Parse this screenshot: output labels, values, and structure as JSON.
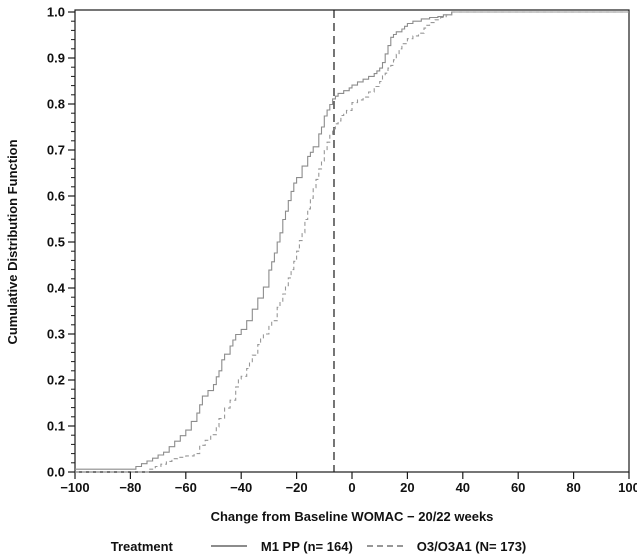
{
  "chart_data": {
    "type": "line",
    "subtype": "empirical-cdf-step",
    "title": "",
    "xlabel": "Change from Baseline WOMAC − 20/22 weeks",
    "ylabel": "Cumulative Distribution Function",
    "xlim": [
      -100,
      100
    ],
    "ylim": [
      0,
      1
    ],
    "grid": "off",
    "legend_position": "bottom",
    "legend_title": "Treatment",
    "x_ticks": [
      -100,
      -80,
      -60,
      -40,
      -20,
      0,
      20,
      40,
      60,
      80,
      100
    ],
    "x_tick_labels": [
      "−100",
      "−80",
      "−60",
      "−40",
      "−20",
      "0",
      "20",
      "40",
      "60",
      "80",
      "100"
    ],
    "y_ticks": [
      0,
      0.1,
      0.2,
      0.3,
      0.4,
      0.5,
      0.6,
      0.7,
      0.8,
      0.9,
      1.0
    ],
    "y_tick_labels": [
      "0.0",
      "0.1",
      "0.2",
      "0.3",
      "0.4",
      "0.5",
      "0.6",
      "0.7",
      "0.8",
      "0.9",
      "1.0"
    ],
    "y_minor_tick_step": 0.02,
    "reference_line_x": -6.5,
    "colors": {
      "axis": "#1a1a1a",
      "reference_line": "#1a1a1a",
      "background": "#ffffff"
    },
    "series": [
      {
        "name": "M1 PP (n= 164)",
        "line_style": "solid",
        "color": "#8c8c8c",
        "points": [
          [
            -100,
            0.006
          ],
          [
            -79,
            0.006
          ],
          [
            -78,
            0.012
          ],
          [
            -76,
            0.018
          ],
          [
            -74,
            0.024
          ],
          [
            -72,
            0.03
          ],
          [
            -70,
            0.037
          ],
          [
            -68,
            0.043
          ],
          [
            -66,
            0.055
          ],
          [
            -64,
            0.067
          ],
          [
            -62,
            0.079
          ],
          [
            -60,
            0.091
          ],
          [
            -58,
            0.11
          ],
          [
            -56,
            0.128
          ],
          [
            -55,
            0.146
          ],
          [
            -54,
            0.165
          ],
          [
            -52,
            0.177
          ],
          [
            -50,
            0.19
          ],
          [
            -49,
            0.207
          ],
          [
            -48,
            0.22
          ],
          [
            -47,
            0.244
          ],
          [
            -46,
            0.256
          ],
          [
            -44,
            0.274
          ],
          [
            -43,
            0.287
          ],
          [
            -42,
            0.299
          ],
          [
            -40,
            0.31
          ],
          [
            -38,
            0.329
          ],
          [
            -36,
            0.354
          ],
          [
            -34,
            0.378
          ],
          [
            -32,
            0.402
          ],
          [
            -30,
            0.439
          ],
          [
            -29,
            0.457
          ],
          [
            -28,
            0.476
          ],
          [
            -27,
            0.5
          ],
          [
            -26,
            0.52
          ],
          [
            -25,
            0.549
          ],
          [
            -24,
            0.567
          ],
          [
            -23,
            0.59
          ],
          [
            -22,
            0.61
          ],
          [
            -21,
            0.628
          ],
          [
            -20,
            0.64
          ],
          [
            -18,
            0.665
          ],
          [
            -16,
            0.686
          ],
          [
            -15,
            0.695
          ],
          [
            -14,
            0.707
          ],
          [
            -12,
            0.735
          ],
          [
            -11,
            0.75
          ],
          [
            -10,
            0.774
          ],
          [
            -9,
            0.787
          ],
          [
            -8,
            0.799
          ],
          [
            -7,
            0.811
          ],
          [
            -6,
            0.817
          ],
          [
            -5,
            0.823
          ],
          [
            -3,
            0.829
          ],
          [
            -1,
            0.835
          ],
          [
            0,
            0.841
          ],
          [
            2,
            0.848
          ],
          [
            4,
            0.854
          ],
          [
            6,
            0.86
          ],
          [
            8,
            0.866
          ],
          [
            9,
            0.872
          ],
          [
            10,
            0.878
          ],
          [
            11,
            0.89
          ],
          [
            12,
            0.909
          ],
          [
            13,
            0.927
          ],
          [
            14,
            0.945
          ],
          [
            15,
            0.951
          ],
          [
            16,
            0.957
          ],
          [
            18,
            0.963
          ],
          [
            19,
            0.969
          ],
          [
            20,
            0.975
          ],
          [
            22,
            0.98
          ],
          [
            25,
            0.985
          ],
          [
            28,
            0.988
          ],
          [
            31,
            0.99
          ],
          [
            33,
            0.994
          ],
          [
            36,
            1.0
          ],
          [
            100,
            1.0
          ]
        ]
      },
      {
        "name": "O3/O3A1 (N= 173)",
        "line_style": "dashed",
        "color": "#979797",
        "points": [
          [
            -100,
            0.0
          ],
          [
            -75,
            0.0
          ],
          [
            -73,
            0.006
          ],
          [
            -71,
            0.012
          ],
          [
            -69,
            0.017
          ],
          [
            -67,
            0.023
          ],
          [
            -65,
            0.029
          ],
          [
            -63,
            0.032
          ],
          [
            -60,
            0.035
          ],
          [
            -57,
            0.04
          ],
          [
            -55,
            0.058
          ],
          [
            -53,
            0.069
          ],
          [
            -51,
            0.081
          ],
          [
            -49,
            0.098
          ],
          [
            -48,
            0.116
          ],
          [
            -46,
            0.139
          ],
          [
            -44,
            0.156
          ],
          [
            -42,
            0.185
          ],
          [
            -41,
            0.202
          ],
          [
            -40,
            0.208
          ],
          [
            -38,
            0.225
          ],
          [
            -37,
            0.237
          ],
          [
            -36,
            0.254
          ],
          [
            -34,
            0.277
          ],
          [
            -33,
            0.289
          ],
          [
            -32,
            0.3
          ],
          [
            -30,
            0.318
          ],
          [
            -29,
            0.329
          ],
          [
            -27,
            0.358
          ],
          [
            -26,
            0.37
          ],
          [
            -25,
            0.387
          ],
          [
            -24,
            0.405
          ],
          [
            -23,
            0.422
          ],
          [
            -22,
            0.44
          ],
          [
            -21,
            0.458
          ],
          [
            -20,
            0.48
          ],
          [
            -19,
            0.503
          ],
          [
            -18,
            0.52
          ],
          [
            -17,
            0.549
          ],
          [
            -16,
            0.572
          ],
          [
            -15,
            0.595
          ],
          [
            -14,
            0.618
          ],
          [
            -13,
            0.636
          ],
          [
            -12,
            0.659
          ],
          [
            -11,
            0.676
          ],
          [
            -10,
            0.699
          ],
          [
            -9,
            0.717
          ],
          [
            -8,
            0.734
          ],
          [
            -7,
            0.746
          ],
          [
            -6,
            0.757
          ],
          [
            -5,
            0.763
          ],
          [
            -4,
            0.775
          ],
          [
            -3,
            0.78
          ],
          [
            -2,
            0.786
          ],
          [
            0,
            0.803
          ],
          [
            2,
            0.809
          ],
          [
            4,
            0.815
          ],
          [
            6,
            0.826
          ],
          [
            8,
            0.838
          ],
          [
            10,
            0.849
          ],
          [
            11,
            0.861
          ],
          [
            12,
            0.867
          ],
          [
            13,
            0.878
          ],
          [
            14,
            0.884
          ],
          [
            15,
            0.896
          ],
          [
            16,
            0.908
          ],
          [
            17,
            0.92
          ],
          [
            18,
            0.931
          ],
          [
            20,
            0.942
          ],
          [
            22,
            0.948
          ],
          [
            24,
            0.954
          ],
          [
            26,
            0.965
          ],
          [
            27,
            0.971
          ],
          [
            28,
            0.977
          ],
          [
            30,
            0.983
          ],
          [
            32,
            0.988
          ],
          [
            34,
            0.994
          ],
          [
            36,
            1.0
          ],
          [
            100,
            1.0
          ]
        ]
      }
    ]
  }
}
